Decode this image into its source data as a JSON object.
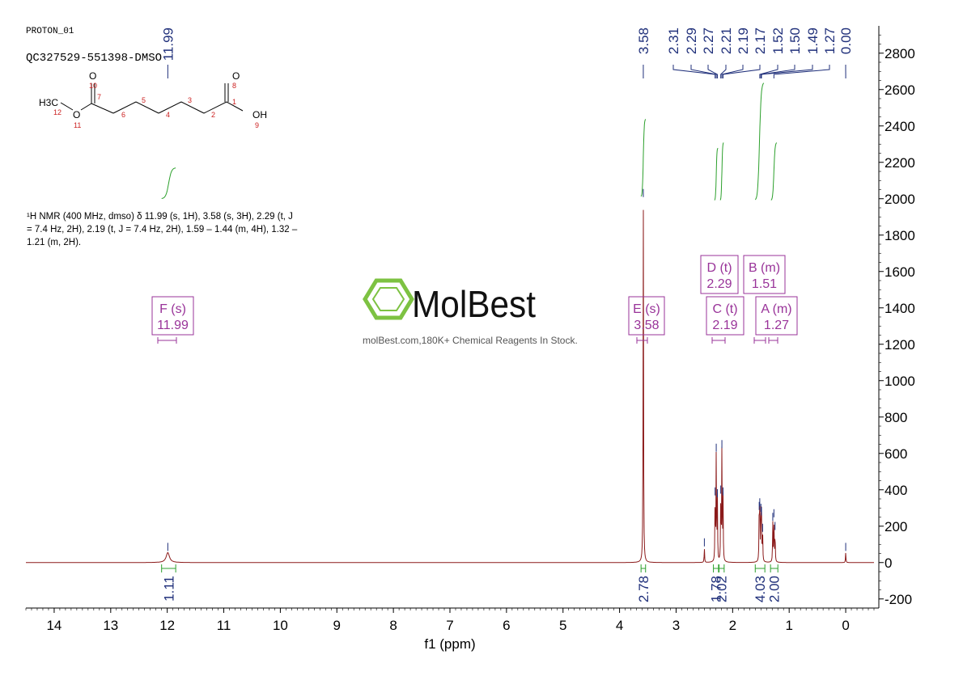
{
  "header": {
    "experiment": "PROTON_01",
    "sample": "QC327529-551398-DMSO"
  },
  "structure": {
    "atoms": [
      "H3C",
      "12",
      "O",
      "11",
      "O",
      "10",
      "7",
      "6",
      "5",
      "4",
      "3",
      "2",
      "1",
      "O",
      "8",
      "OH",
      "9"
    ]
  },
  "description": {
    "line1": "¹H NMR (400 MHz, dmso) δ 11.99 (s, 1H), 3.58 (s, 3H), 2.29 (t, J",
    "line2": "= 7.4 Hz, 2H), 2.19 (t, J = 7.4 Hz, 2H), 1.59 – 1.44 (m, 4H), 1.32 –",
    "line3": "1.21 (m, 2H)."
  },
  "watermark": {
    "brand": "MolBest",
    "tagline": "molBest.com,180K+ Chemical Reagents In Stock.",
    "logo_color": "#7dc242"
  },
  "colors": {
    "spectrum": "#8b1a1a",
    "integral": "#2ca02c",
    "peak_label": "#1f2f7a",
    "multiplet_box": "#993399",
    "axis": "#000000"
  },
  "chart_data": {
    "type": "line",
    "title": "",
    "xlabel": "f1 (ppm)",
    "ylabel": "",
    "xlim": [
      14.5,
      -0.5
    ],
    "ylim": [
      -250,
      2950
    ],
    "x_reversed": true,
    "x_ticks": [
      14,
      13,
      12,
      11,
      10,
      9,
      8,
      7,
      6,
      5,
      4,
      3,
      2,
      1,
      0
    ],
    "y_ticks": [
      -200,
      0,
      200,
      400,
      600,
      800,
      1000,
      1200,
      1400,
      1600,
      1800,
      2000,
      2200,
      2400,
      2600,
      2800
    ],
    "y_axis_side": "right",
    "peaks": [
      {
        "ppm": 11.99,
        "height": 55
      },
      {
        "ppm": 3.58,
        "height": 2000
      },
      {
        "ppm": 2.5,
        "height": 80
      },
      {
        "ppm": 2.31,
        "height": 360
      },
      {
        "ppm": 2.29,
        "height": 600
      },
      {
        "ppm": 2.27,
        "height": 350
      },
      {
        "ppm": 2.21,
        "height": 370
      },
      {
        "ppm": 2.19,
        "height": 620
      },
      {
        "ppm": 2.17,
        "height": 360
      },
      {
        "ppm": 1.53,
        "height": 280
      },
      {
        "ppm": 1.52,
        "height": 300
      },
      {
        "ppm": 1.5,
        "height": 270
      },
      {
        "ppm": 1.49,
        "height": 250
      },
      {
        "ppm": 1.47,
        "height": 160
      },
      {
        "ppm": 1.29,
        "height": 220
      },
      {
        "ppm": 1.27,
        "height": 240
      },
      {
        "ppm": 1.25,
        "height": 170
      },
      {
        "ppm": 0.0,
        "height": 55
      }
    ],
    "peak_labels": [
      "11.99",
      "3.58",
      "2.31",
      "2.29",
      "2.27",
      "2.21",
      "2.19",
      "2.17",
      "1.52",
      "1.50",
      "1.49",
      "1.27",
      "0.00"
    ],
    "multiplets": [
      {
        "label": "F (s)",
        "shift": "11.99"
      },
      {
        "label": "E (s)",
        "shift": "3.58"
      },
      {
        "label": "D (t)",
        "shift": "2.29"
      },
      {
        "label": "C (t)",
        "shift": "2.19"
      },
      {
        "label": "B (m)",
        "shift": "1.51"
      },
      {
        "label": "A (m)",
        "shift": "1.27"
      }
    ],
    "integrals": [
      {
        "from": 12.1,
        "to": 11.85,
        "value": "1.11"
      },
      {
        "from": 3.62,
        "to": 3.54,
        "value": "2.78"
      },
      {
        "from": 2.34,
        "to": 2.25,
        "value": "1.78"
      },
      {
        "from": 2.24,
        "to": 2.15,
        "value": "2.02"
      },
      {
        "from": 1.6,
        "to": 1.43,
        "value": "4.03"
      },
      {
        "from": 1.33,
        "to": 1.2,
        "value": "2.00"
      }
    ]
  }
}
